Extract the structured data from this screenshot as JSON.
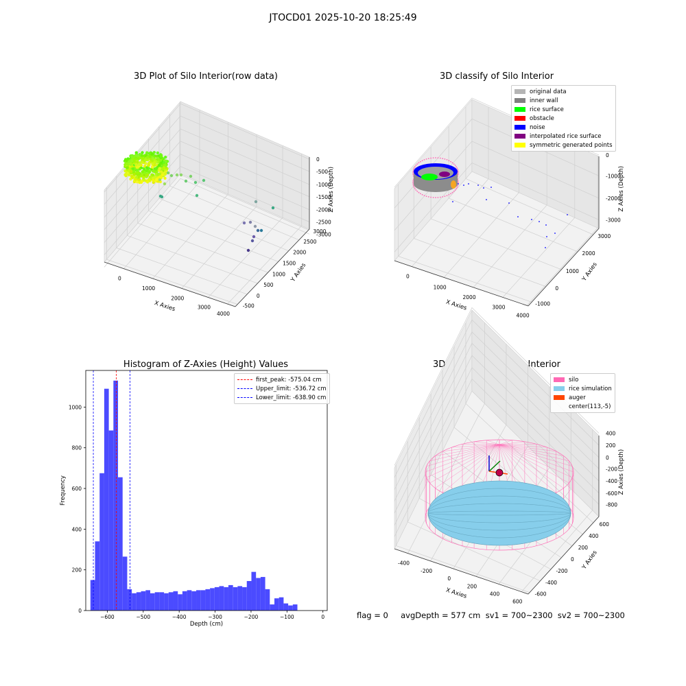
{
  "suptitle": "JTOCD01 2025-10-20 18:25:49",
  "footer": "flag = 0     avgDepth = 577 cm  sv1 = 700~2300  sv2 = 700~2300",
  "chart_data": [
    {
      "type": "scatter",
      "title": "3D Plot of Silo Interior(row data)",
      "xlabel": "X Axies",
      "ylabel": "Y Axies",
      "zlabel": "Z Axies (Depth)",
      "x_ticks": [
        "0",
        "1000",
        "2000",
        "3000",
        "4000"
      ],
      "y_ticks": [
        "-500",
        "0",
        "500",
        "1000",
        "1500",
        "2000",
        "2500",
        "3000"
      ],
      "z_ticks": [
        "0",
        "-500",
        "-1000",
        "-1500",
        "-2000",
        "-2500",
        "-3000"
      ],
      "colormap": "viridis",
      "notes": "dense ring of points near origin (yellow-green), sparse outliers toward far corner (teal/purple)"
    },
    {
      "type": "scatter",
      "title": "3D classify of Silo Interior",
      "xlabel": "X Axies",
      "ylabel": "Y Axies",
      "zlabel": "Z Axies (Depth)",
      "x_ticks": [
        "0",
        "1000",
        "2000",
        "3000",
        "4000"
      ],
      "y_ticks": [
        "-1000",
        "0",
        "1000",
        "2000",
        "3000"
      ],
      "z_ticks": [
        "0",
        "-1000",
        "-2000",
        "-3000"
      ],
      "legend": [
        {
          "name": "original data",
          "color": "#b5b5b5"
        },
        {
          "name": "inner wall",
          "color": "#808080"
        },
        {
          "name": "rice surface",
          "color": "#00ff00"
        },
        {
          "name": "obstacle",
          "color": "#ff0000"
        },
        {
          "name": "noise",
          "color": "#0000ff"
        },
        {
          "name": "interpolated rice surface",
          "color": "#800080"
        },
        {
          "name": "symmetric generated points",
          "color": "#ffff00"
        }
      ]
    },
    {
      "type": "bar",
      "title": "Histogram of Z-Axies (Height) Values",
      "xlabel": "Depth (cm)",
      "ylabel": "Frequency",
      "color": "#4b4bff",
      "xlim": [
        -660,
        12
      ],
      "ylim": [
        0,
        1180
      ],
      "x_ticks": [
        -600,
        -500,
        -400,
        -300,
        -200,
        -100,
        0
      ],
      "y_ticks": [
        0,
        200,
        400,
        600,
        800,
        1000
      ],
      "bin_start": -647,
      "bin_width": 12.8,
      "values": [
        150,
        340,
        675,
        1090,
        885,
        1130,
        655,
        265,
        105,
        85,
        90,
        95,
        100,
        85,
        90,
        90,
        85,
        90,
        95,
        80,
        95,
        100,
        95,
        100,
        100,
        105,
        110,
        115,
        120,
        115,
        125,
        115,
        120,
        115,
        145,
        190,
        160,
        165,
        105,
        30,
        60,
        65,
        35,
        25,
        30
      ],
      "vlines": [
        {
          "label": "first_peak: -575.04 cm",
          "x": -575.04,
          "color": "#ff0000"
        },
        {
          "label": "Upper_limit: -536.72 cm",
          "x": -536.72,
          "color": "#0000ff"
        },
        {
          "label": "Lower_limit: -638.90 cm",
          "x": -638.9,
          "color": "#0000ff"
        }
      ]
    },
    {
      "type": "scatter",
      "title": "3D simulation of Silo Interior",
      "xlabel": "X Axies",
      "ylabel": "Y Axies",
      "zlabel": "Z Axies (Depth)",
      "x_ticks": [
        "-400",
        "-200",
        "0",
        "200",
        "400",
        "600"
      ],
      "y_ticks": [
        "-600",
        "-400",
        "-200",
        "0",
        "200",
        "400",
        "600"
      ],
      "z_ticks": [
        "400",
        "200",
        "0",
        "-200",
        "-400",
        "-600",
        "-800"
      ],
      "legend": [
        {
          "name": "silo",
          "color": "#ff69b4"
        },
        {
          "name": "rice simulation",
          "color": "#87ceeb"
        },
        {
          "name": "auger",
          "color": "#ff4500"
        },
        {
          "name": "center(113,-5)",
          "color": ""
        }
      ]
    }
  ]
}
